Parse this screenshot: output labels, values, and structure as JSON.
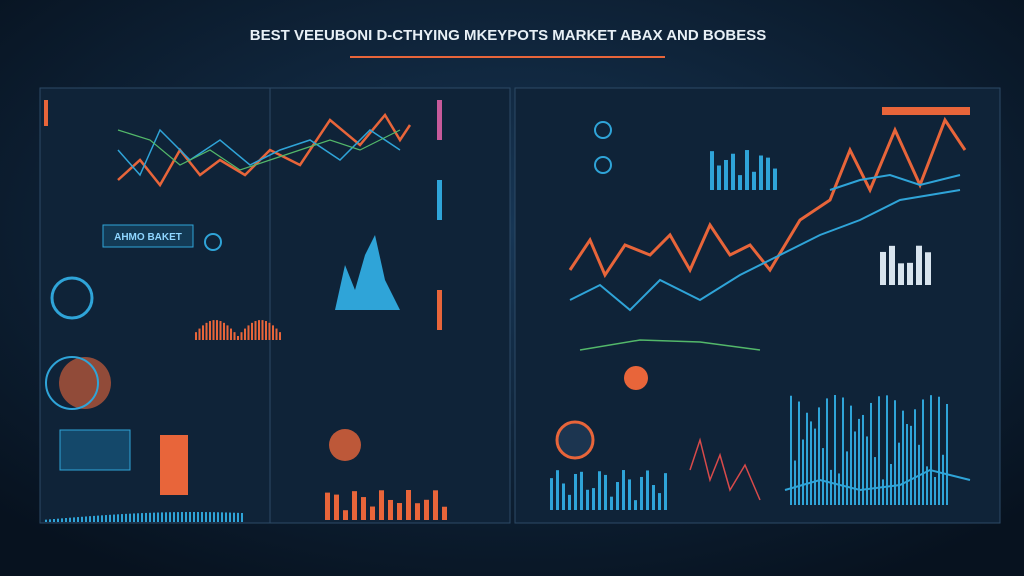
{
  "header": {
    "title": "BEST VEEUBONI D-CTHYING MKEYPOTS MARKET ABAX AND BOBESS"
  },
  "panels": {
    "badge": "AHMO BAKET"
  }
}
